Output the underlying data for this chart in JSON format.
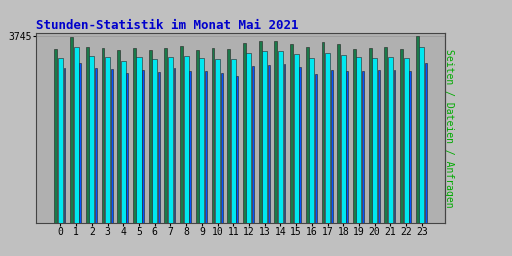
{
  "title": "Stunden-Statistik im Monat Mai 2021",
  "ylabel_right": "Seiten / Dateien / Anfragen",
  "hours": [
    0,
    1,
    2,
    3,
    4,
    5,
    6,
    7,
    8,
    9,
    10,
    11,
    12,
    13,
    14,
    15,
    16,
    17,
    18,
    19,
    20,
    21,
    22,
    23
  ],
  "seiten": [
    3480,
    3720,
    3530,
    3500,
    3460,
    3510,
    3470,
    3510,
    3540,
    3470,
    3500,
    3480,
    3600,
    3640,
    3650,
    3590,
    3520,
    3620,
    3590,
    3490,
    3510,
    3520,
    3480,
    3740
  ],
  "dateien": [
    3300,
    3530,
    3350,
    3330,
    3240,
    3330,
    3280,
    3330,
    3340,
    3300,
    3290,
    3280,
    3410,
    3440,
    3450,
    3380,
    3300,
    3400,
    3360,
    3330,
    3310,
    3330,
    3310,
    3530
  ],
  "anfragen": [
    3100,
    3200,
    3100,
    3080,
    3000,
    3070,
    3020,
    3100,
    3050,
    3050,
    3000,
    2950,
    3150,
    3160,
    3180,
    3130,
    2980,
    3060,
    3050,
    3050,
    3070,
    3060,
    3050,
    3200
  ],
  "color_seiten": "#1a7a4a",
  "color_dateien": "#00e8f0",
  "color_anfragen": "#0055ff",
  "bg_color": "#c0c0c0",
  "plot_bg_color": "#b0b0b0",
  "title_color": "#0000cc",
  "right_label_color": "#00aa00",
  "bw_green": 0.18,
  "bw_cyan": 0.32,
  "bw_blue": 0.12,
  "ylim_min": 0,
  "ylim_max": 3800,
  "ytick_val": 3745,
  "figsize": [
    5.12,
    2.56
  ],
  "dpi": 100
}
